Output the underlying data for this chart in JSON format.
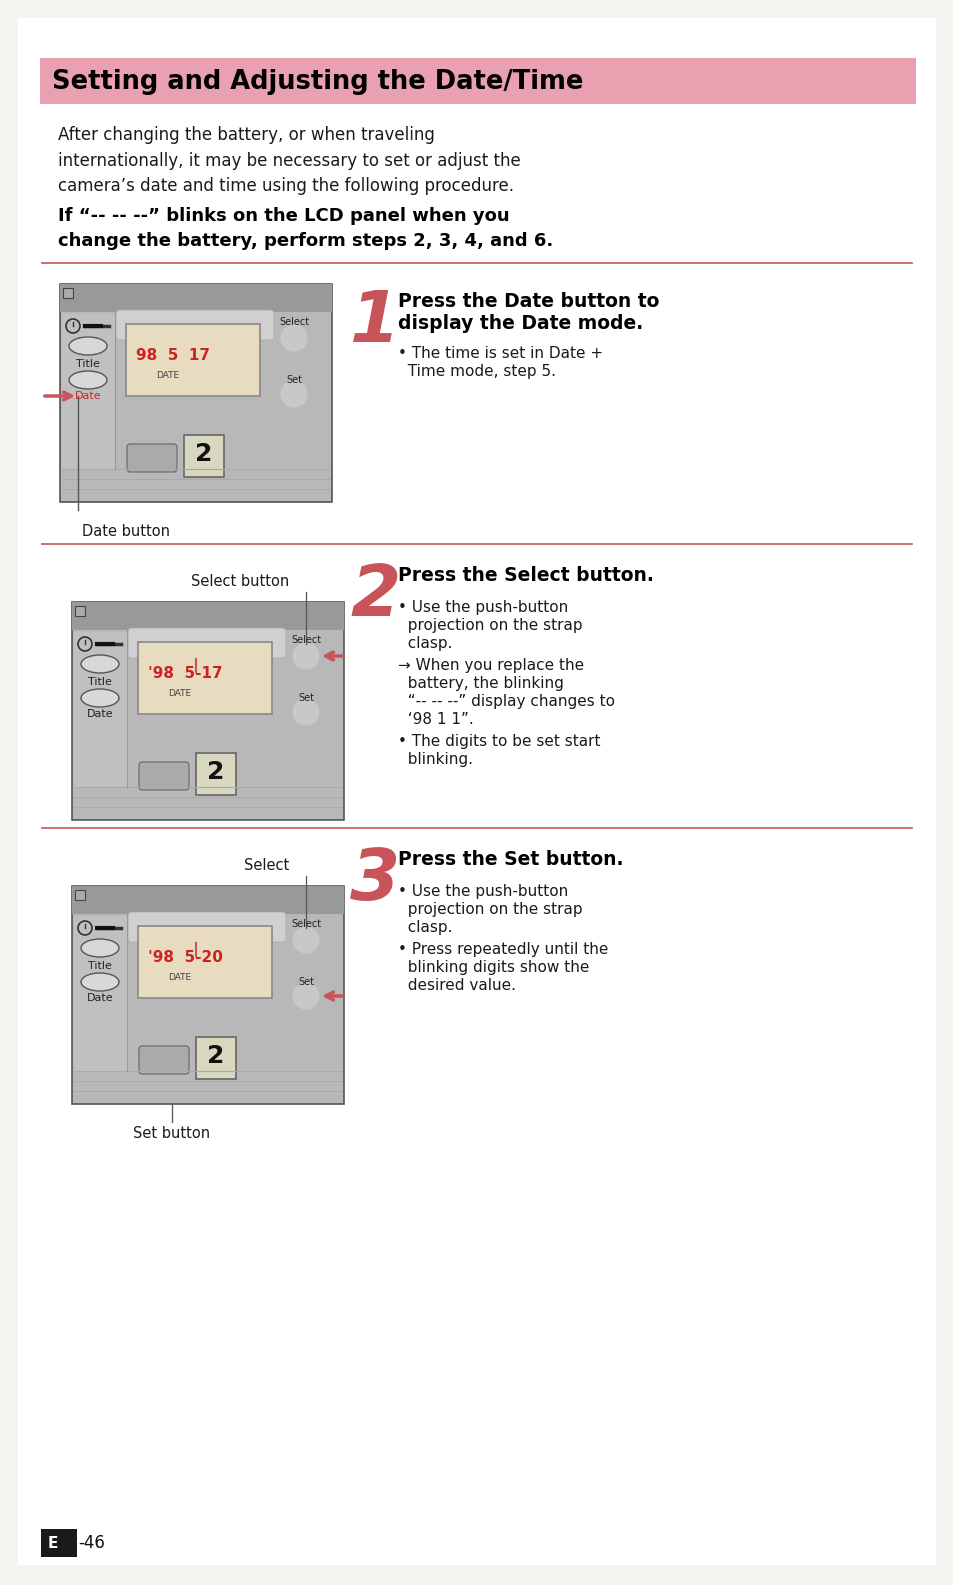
{
  "title": "Setting and Adjusting the Date/Time",
  "title_bg": "#e9a0b0",
  "title_color": "#000000",
  "page_bg": "#f5f4f0",
  "body_text_1": "After changing the battery, or when traveling\ninternationally, it may be necessary to set or adjust the\ncamera’s date and time using the following procedure.",
  "body_text_bold_1": "If “-- -- --” blinks on the LCD panel when you",
  "body_text_bold_2": "change the battery, perform steps 2, 3, 4, and 6.",
  "step1_number": "1",
  "step1_title_1": "Press the Date button to",
  "step1_title_2": "display the Date mode.",
  "step1_bullet1": "• The time is set in Date +",
  "step1_bullet1b": "  Time mode, step 5.",
  "step1_label": "Date button",
  "step2_number": "2",
  "step2_title": "Press the Select button.",
  "step2_bullet1a": "• Use the push-button",
  "step2_bullet1b": "  projection on the strap",
  "step2_bullet1c": "  clasp.",
  "step2_arrow_a": "→ When you replace the",
  "step2_arrow_b": "  battery, the blinking",
  "step2_arrow_c": "  “-- -- --” display changes to",
  "step2_arrow_d": "  ‘98 1 1”.",
  "step2_bullet2a": "• The digits to be set start",
  "step2_bullet2b": "  blinking.",
  "step2_label": "Select button",
  "step3_number": "3",
  "step3_title": "Press the Set button.",
  "step3_bullet1a": "• Use the push-button",
  "step3_bullet1b": "  projection on the strap",
  "step3_bullet1c": "  clasp.",
  "step3_bullet2a": "• Press repeatedly until the",
  "step3_bullet2b": "  blinking digits show the",
  "step3_bullet2c": "  desired value.",
  "step3_label": "Set button",
  "footer_box_color": "#1a1a1a",
  "footer_text": "E",
  "footer_num": "-46",
  "divider_color": "#c8545a",
  "step_number_color": "#c8545a",
  "arrow_color": "#c8545a",
  "text_color": "#1a1a1a",
  "cam_body_color": "#b8b8b8",
  "cam_dark": "#888888",
  "cam_top_color": "#a0a0a0",
  "lcd_bg": "#e8dcc0",
  "lcd_red": "#cc2222",
  "cam_border": "#555555"
}
